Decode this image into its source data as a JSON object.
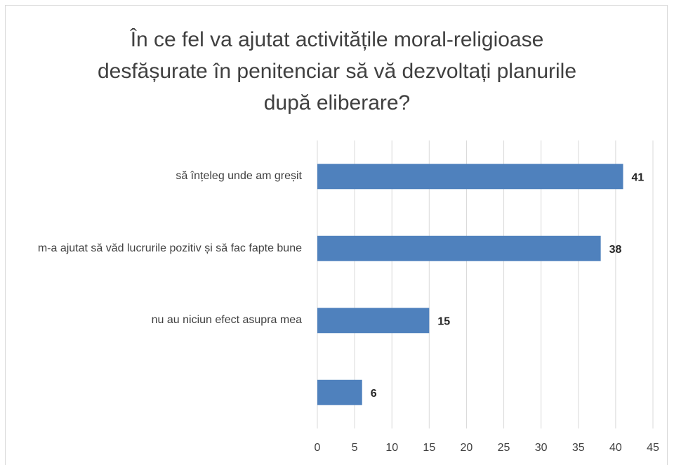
{
  "chart_data": {
    "type": "bar",
    "orientation": "horizontal",
    "title": "În ce fel va ajutat activitățile moral-religioase desfășurate în penitenciar să vă dezvoltați planurile după eliberare?",
    "categories": [
      "să înțeleg unde am greșit",
      "m-a ajutat să văd lucrurile pozitiv și să fac fapte bune",
      "nu au niciun efect asupra mea",
      null
    ],
    "values": [
      41,
      38,
      15,
      6
    ],
    "color": "#4f81bd",
    "xlim": [
      0,
      45
    ],
    "xticks": [
      0,
      5,
      10,
      15,
      20,
      25,
      30,
      35,
      40,
      45
    ],
    "grid": true
  }
}
